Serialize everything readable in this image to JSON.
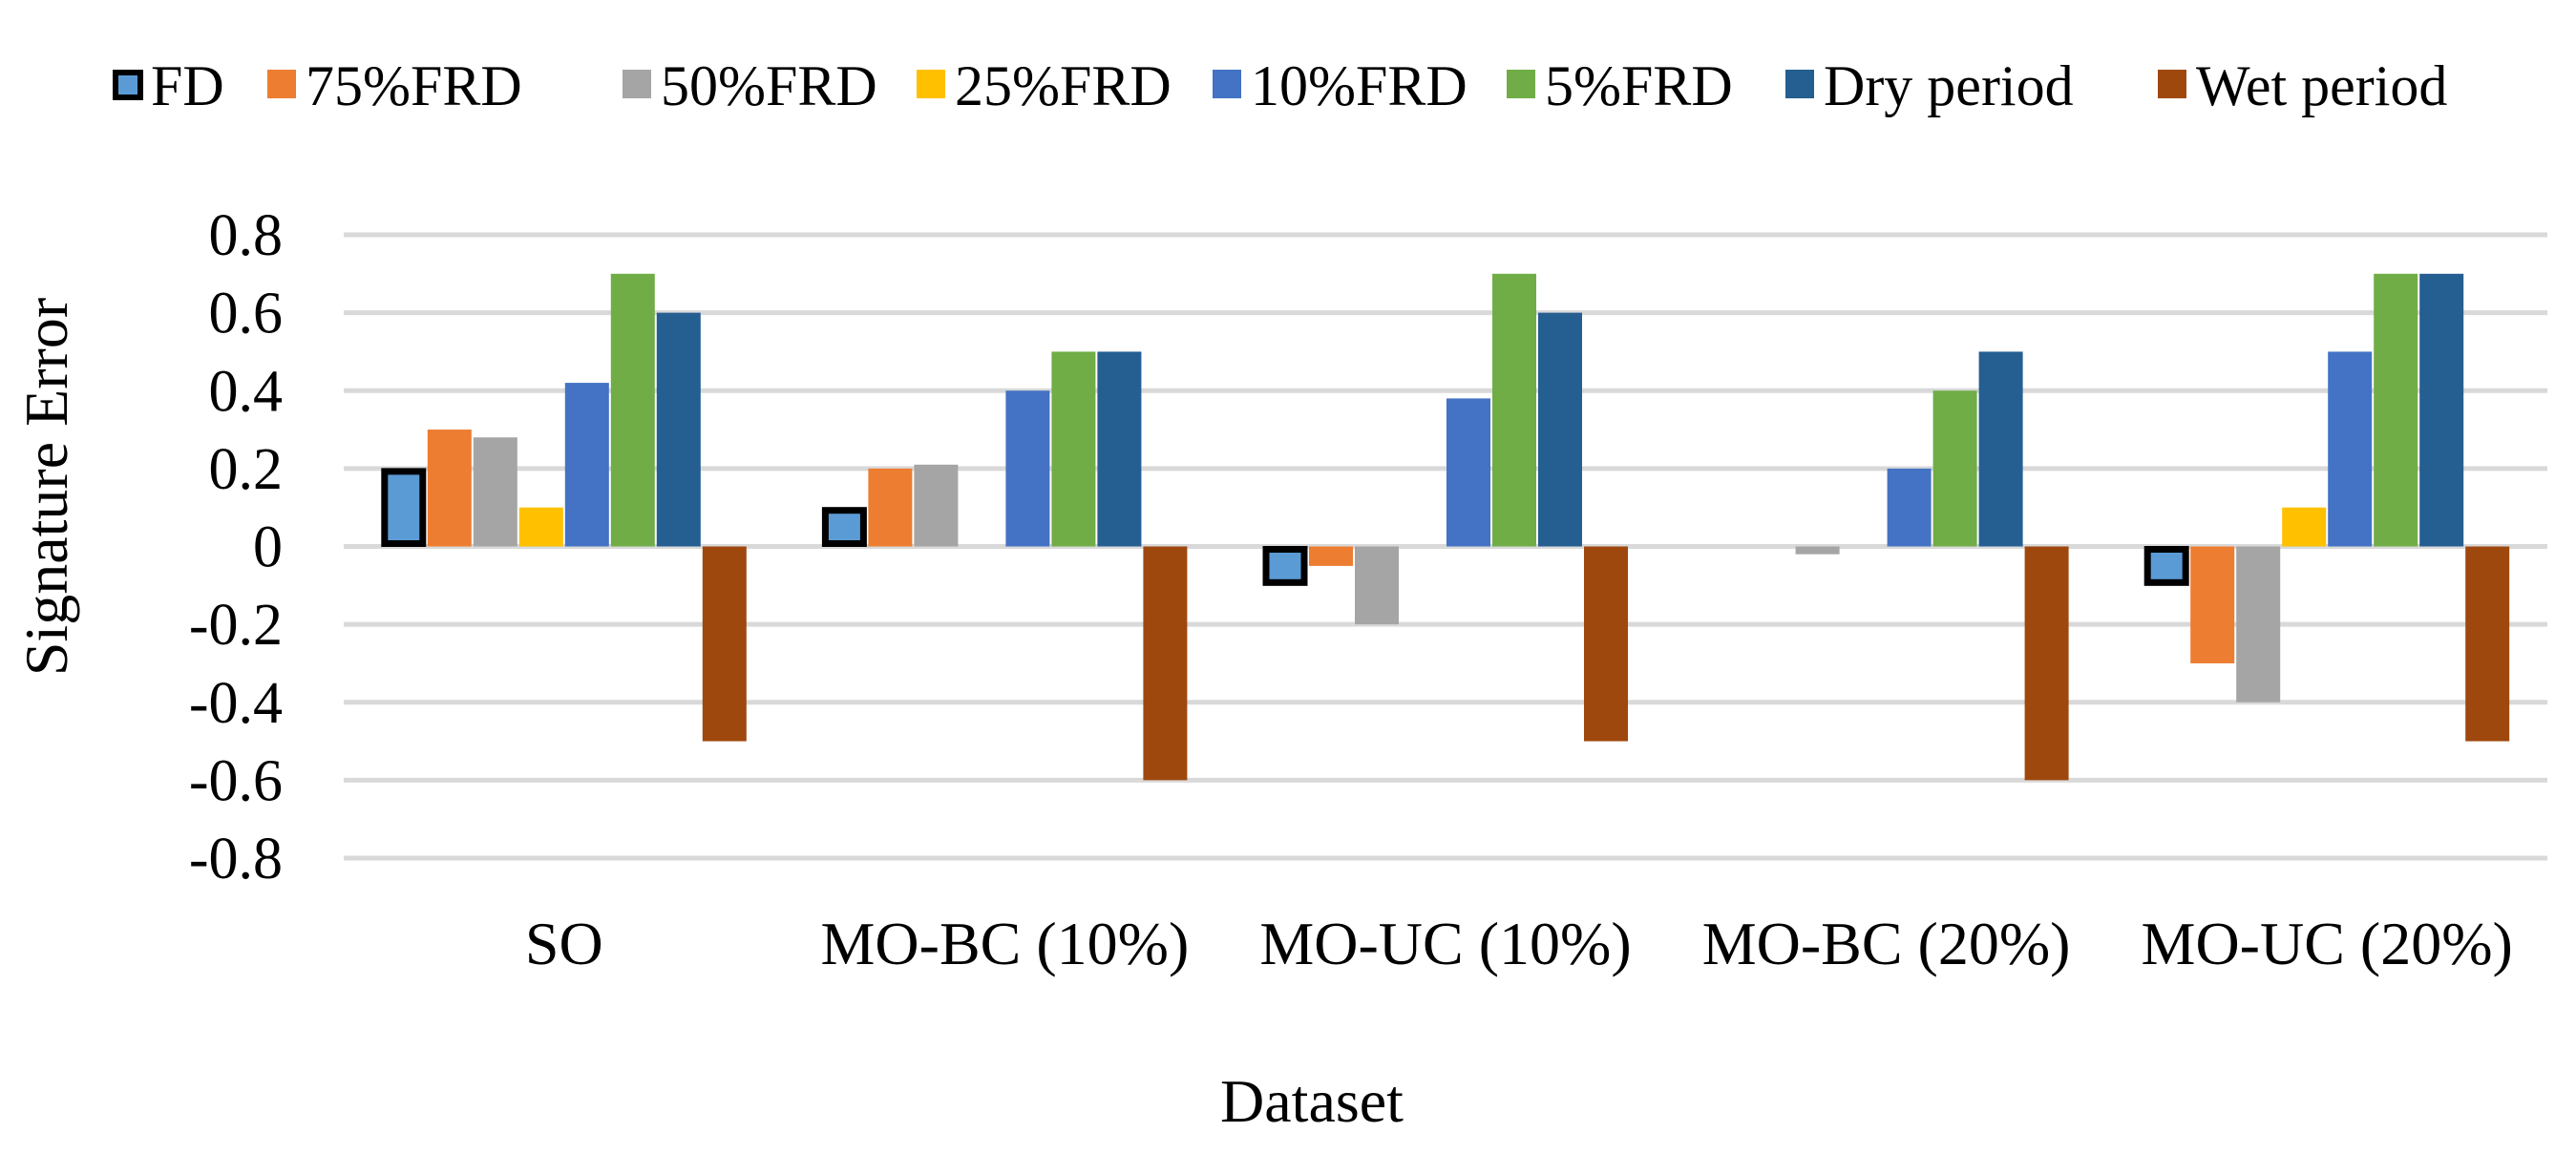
{
  "chart_data": {
    "type": "bar",
    "title": "",
    "xlabel": "Dataset",
    "ylabel": "Signature Error",
    "ylim": [
      -0.8,
      0.8
    ],
    "yticks": [
      0.8,
      0.6,
      0.4,
      0.2,
      0,
      -0.2,
      -0.4,
      -0.6,
      -0.8
    ],
    "ytick_labels": [
      "0.8",
      "0.6",
      "0.4",
      "0.2",
      "0",
      "-0.2",
      "-0.4",
      "-0.6",
      "-0.8"
    ],
    "grid": true,
    "legend_position": "top",
    "categories": [
      "SO",
      "MO-BC (10%)",
      "MO-UC (10%)",
      "MO-BC (20%)",
      "MO-UC (20%)"
    ],
    "series": [
      {
        "name": "FD",
        "color": "#5B9BD5",
        "outline": "#000000",
        "values": [
          0.2,
          0.1,
          -0.1,
          0,
          -0.1
        ]
      },
      {
        "name": "75%FRD",
        "color": "#ED7D31",
        "values": [
          0.3,
          0.2,
          -0.05,
          0,
          -0.3
        ]
      },
      {
        "name": "50%FRD",
        "color": "#A5A5A5",
        "values": [
          0.28,
          0.21,
          -0.2,
          -0.02,
          -0.4
        ]
      },
      {
        "name": "25%FRD",
        "color": "#FFC000",
        "values": [
          0.1,
          0,
          0,
          0,
          0.1
        ]
      },
      {
        "name": "10%FRD",
        "color": "#4472C4",
        "values": [
          0.42,
          0.4,
          0.38,
          0.2,
          0.5
        ]
      },
      {
        "name": "5%FRD",
        "color": "#70AD47",
        "values": [
          0.7,
          0.5,
          0.7,
          0.4,
          0.7
        ]
      },
      {
        "name": "Dry period",
        "color": "#255E91",
        "values": [
          0.6,
          0.5,
          0.6,
          0.5,
          0.7
        ]
      },
      {
        "name": "Wet period",
        "color": "#9E480E",
        "values": [
          -0.5,
          -0.6,
          -0.5,
          -0.6,
          -0.5
        ]
      }
    ]
  }
}
